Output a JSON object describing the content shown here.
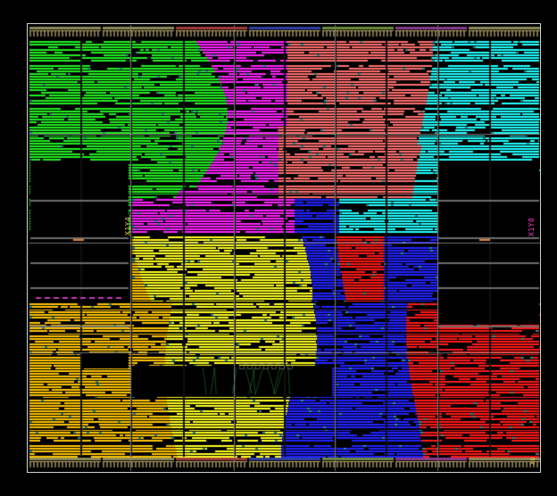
{
  "view": {
    "background": "#000000",
    "frame_color": "#cfd4c8",
    "grid_color": "#c8c8c8"
  },
  "clock_region_labels": {
    "left": "X1Y4",
    "right": "X1Y0",
    "corner": "X0"
  },
  "regions": [
    {
      "name": "pblock-green",
      "color": "#22ee22"
    },
    {
      "name": "pblock-magenta",
      "color": "#ff22ff"
    },
    {
      "name": "pblock-salmon",
      "color": "#ff6f6f"
    },
    {
      "name": "pblock-cyan",
      "color": "#22ffff"
    },
    {
      "name": "pblock-orange",
      "color": "#ffc400"
    },
    {
      "name": "pblock-yellow",
      "color": "#ffff22"
    },
    {
      "name": "pblock-blue",
      "color": "#2222ff"
    },
    {
      "name": "pblock-red",
      "color": "#ff1a1a"
    }
  ]
}
